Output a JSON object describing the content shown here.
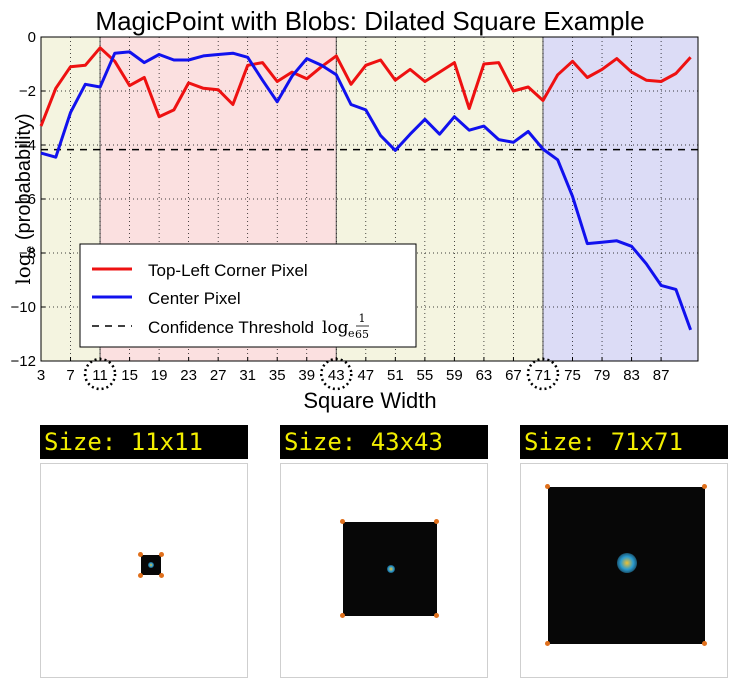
{
  "chart_data": {
    "type": "line",
    "title": "MagicPoint with Blobs: Dilated Square Example",
    "xlabel": "Square Width",
    "ylabel": "log_e (probabability)",
    "xlim": [
      3,
      92
    ],
    "ylim": [
      -12,
      0
    ],
    "xticks": [
      3,
      7,
      11,
      15,
      19,
      23,
      27,
      31,
      35,
      39,
      43,
      47,
      51,
      55,
      59,
      63,
      67,
      71,
      75,
      79,
      83,
      87
    ],
    "yticks": [
      0,
      -2,
      -4,
      -6,
      -8,
      -10,
      -12
    ],
    "highlighted_ticks": [
      11,
      43,
      71
    ],
    "grid": true,
    "legend_position": "lower-left",
    "shaded_regions": [
      {
        "from": 3,
        "to": 11,
        "color": "#f4f4e0"
      },
      {
        "from": 11,
        "to": 43,
        "color": "#fbe0e0"
      },
      {
        "from": 43,
        "to": 71,
        "color": "#f4f4e0"
      },
      {
        "from": 71,
        "to": 92,
        "color": "#dcdcf6"
      }
    ],
    "x": [
      3,
      5,
      7,
      9,
      11,
      13,
      15,
      17,
      19,
      21,
      23,
      25,
      27,
      29,
      31,
      33,
      35,
      37,
      39,
      41,
      43,
      45,
      47,
      49,
      51,
      53,
      55,
      57,
      59,
      61,
      63,
      65,
      67,
      69,
      71,
      73,
      75,
      77,
      79,
      81,
      83,
      85,
      87,
      89,
      91
    ],
    "series": [
      {
        "name": "Top-Left Corner Pixel",
        "color": "#ee1111",
        "values": [
          -3.3,
          -1.9,
          -1.1,
          -1.05,
          -0.4,
          -0.9,
          -1.8,
          -1.5,
          -2.95,
          -2.7,
          -1.7,
          -1.9,
          -1.95,
          -2.5,
          -1.05,
          -0.95,
          -1.65,
          -1.3,
          -1.55,
          -1.1,
          -0.7,
          -1.75,
          -1.05,
          -0.85,
          -1.6,
          -1.2,
          -1.65,
          -1.3,
          -0.95,
          -2.65,
          -1.0,
          -0.95,
          -2.0,
          -1.85,
          -2.35,
          -1.4,
          -0.9,
          -1.5,
          -1.2,
          -0.8,
          -1.3,
          -1.6,
          -1.65,
          -1.35,
          -0.75
        ]
      },
      {
        "name": "Center Pixel",
        "color": "#1111ee",
        "values": [
          -4.3,
          -4.45,
          -2.8,
          -1.75,
          -1.85,
          -0.6,
          -0.55,
          -0.95,
          -0.65,
          -0.85,
          -0.85,
          -0.7,
          -0.65,
          -0.6,
          -0.75,
          -1.6,
          -2.4,
          -1.45,
          -0.8,
          -1.05,
          -1.4,
          -2.5,
          -2.7,
          -3.65,
          -4.2,
          -3.6,
          -3.05,
          -3.6,
          -2.95,
          -3.45,
          -3.3,
          -3.8,
          -3.9,
          -3.5,
          -4.15,
          -4.55,
          -5.9,
          -7.65,
          -7.6,
          -7.55,
          -7.75,
          -8.4,
          -9.2,
          -9.35,
          -10.85
        ]
      }
    ],
    "threshold": {
      "name": "Confidence Threshold",
      "value": -4.17,
      "style": "dashed",
      "color": "#000000",
      "formula_base": "log",
      "formula_sub": "e",
      "formula_num": "1",
      "formula_den": "65"
    }
  },
  "panels": [
    {
      "label": "Size: 11x11"
    },
    {
      "label": "Size: 43x43"
    },
    {
      "label": "Size: 71x71"
    }
  ]
}
